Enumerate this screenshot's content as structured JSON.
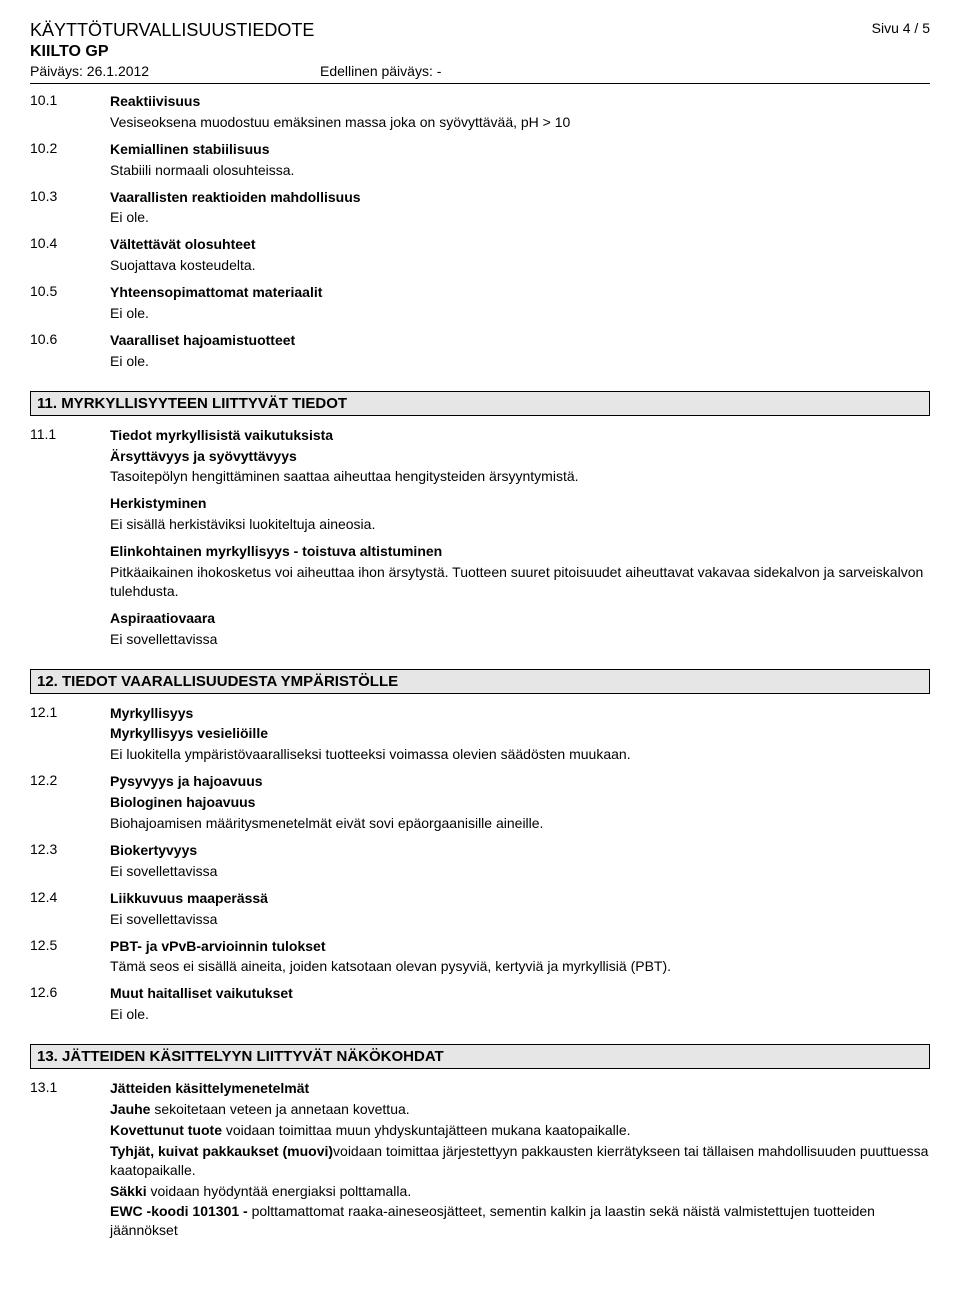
{
  "header": {
    "doc_title": "KÄYTTÖTURVALLISUUSTIEDOTE",
    "product_name": "KIILTO GP",
    "page_label": "Sivu  4 / 5",
    "date_label": "Päiväys: 26.1.2012",
    "prev_date_label": "Edellinen päiväys: -"
  },
  "s10": [
    {
      "num": "10.1",
      "title": "Reaktiivisuus",
      "body": "Vesiseoksena muodostuu emäksinen massa joka on syövyttävää, pH > 10"
    },
    {
      "num": "10.2",
      "title": "Kemiallinen stabiilisuus",
      "body": "Stabiili normaali olosuhteissa."
    },
    {
      "num": "10.3",
      "title": "Vaarallisten reaktioiden mahdollisuus",
      "body": "Ei ole."
    },
    {
      "num": "10.4",
      "title": "Vältettävät olosuhteet",
      "body": "Suojattava kosteudelta."
    },
    {
      "num": "10.5",
      "title": "Yhteensopimattomat materiaalit",
      "body": "Ei ole."
    },
    {
      "num": "10.6",
      "title": "Vaaralliset hajoamistuotteet",
      "body": "Ei ole."
    }
  ],
  "s11": {
    "heading": "11. MYRKYLLISYYTEEN LIITTYVÄT TIEDOT",
    "num": "11.1",
    "title": "Tiedot myrkyllisistä vaikutuksista",
    "sub1_title": "Ärsyttävyys ja syövyttävyys",
    "sub1_body": "Tasoitepölyn hengittäminen saattaa aiheuttaa hengitysteiden ärsyyntymistä.",
    "sub2_title": "Herkistyminen",
    "sub2_body": "Ei sisällä herkistäviksi luokiteltuja aineosia.",
    "sub3_title": "Elinkohtainen myrkyllisyys - toistuva altistuminen",
    "sub3_body": "Pitkäaikainen ihokosketus voi aiheuttaa ihon ärsytystä.  Tuotteen suuret pitoisuudet aiheuttavat vakavaa sidekalvon ja sarveiskalvon tulehdusta.",
    "sub4_title": "Aspiraatiovaara",
    "sub4_body": "Ei sovellettavissa"
  },
  "s12": {
    "heading": "12. TIEDOT VAARALLISUUDESTA YMPÄRISTÖLLE",
    "items": [
      {
        "num": "12.1",
        "title": "Myrkyllisyys",
        "sub": "Myrkyllisyys vesieliöille",
        "body": "Ei luokitella ympäristövaaralliseksi tuotteeksi voimassa olevien säädösten muukaan."
      },
      {
        "num": "12.2",
        "title": "Pysyvyys ja hajoavuus",
        "sub": "Biologinen hajoavuus",
        "body": "Biohajoamisen määritysmenetelmät eivät sovi epäorgaanisille aineille."
      },
      {
        "num": "12.3",
        "title": "Biokertyvyys",
        "sub": "",
        "body": "Ei sovellettavissa"
      },
      {
        "num": "12.4",
        "title": "Liikkuvuus maaperässä",
        "sub": "",
        "body": "Ei sovellettavissa"
      },
      {
        "num": "12.5",
        "title": "PBT- ja vPvB-arvioinnin tulokset",
        "sub": "",
        "body": "Tämä seos ei sisällä aineita, joiden katsotaan olevan pysyviä, kertyviä ja myrkyllisiä (PBT)."
      },
      {
        "num": "12.6",
        "title": "Muut haitalliset vaikutukset",
        "sub": "",
        "body": "Ei ole."
      }
    ]
  },
  "s13": {
    "heading": "13. JÄTTEIDEN KÄSITTELYYN LIITTYVÄT NÄKÖKOHDAT",
    "num": "13.1",
    "title": "Jätteiden käsittelymenetelmät",
    "l1a": "Jauhe",
    "l1b": " sekoitetaan veteen ja annetaan kovettua.",
    "l2a": "Kovettunut tuote",
    "l2b": "  voidaan toimittaa muun yhdyskuntajätteen mukana kaatopaikalle.",
    "l3a": "Tyhjät, kuivat pakkaukset (muovi)",
    "l3b": "voidaan toimittaa järjestettyyn pakkausten kierrätykseen tai tällaisen mahdollisuuden puuttuessa kaatopaikalle.",
    "l4a": "Säkki",
    "l4b": " voidaan hyödyntää energiaksi polttamalla.",
    "l5a": "EWC -koodi 101301 -",
    "l5b": " polttamattomat raaka-aineseosjätteet, sementin kalkin ja laastin sekä näistä valmistettujen tuotteiden jäännökset"
  }
}
